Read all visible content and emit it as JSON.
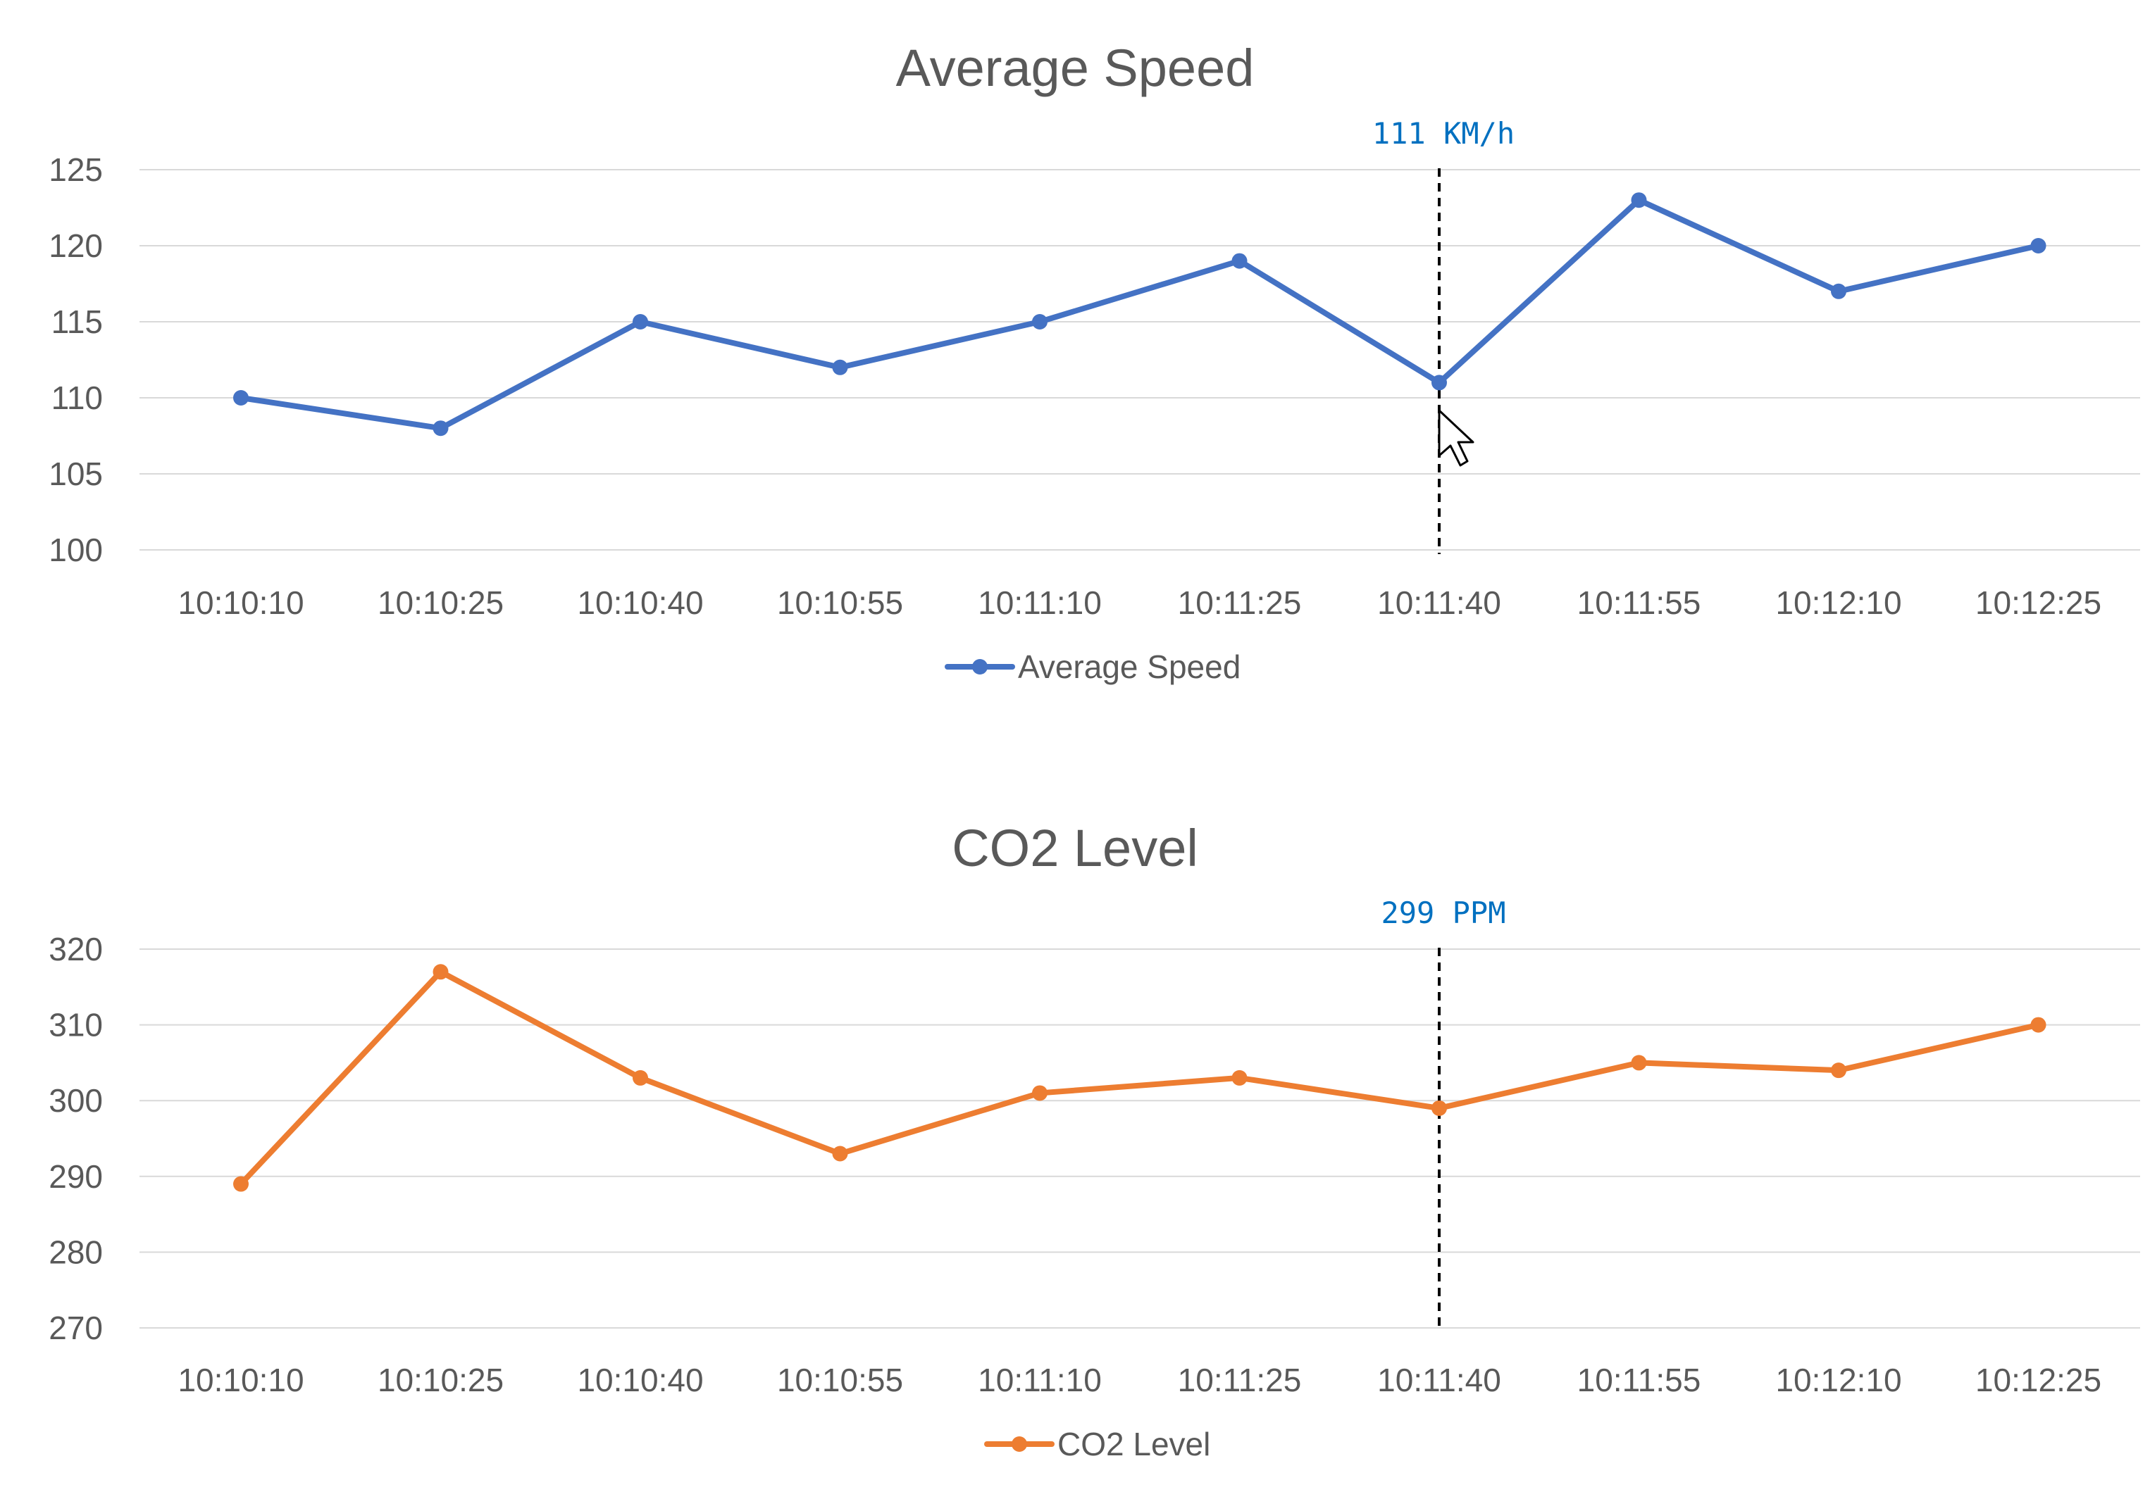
{
  "chart_data": [
    {
      "type": "line",
      "title": "Average Speed",
      "categories": [
        "10:10:10",
        "10:10:25",
        "10:10:40",
        "10:10:55",
        "10:11:10",
        "10:11:25",
        "10:11:40",
        "10:11:55",
        "10:12:10",
        "10:12:25"
      ],
      "series": [
        {
          "name": "Average Speed",
          "color": "#4472c4",
          "values": [
            110,
            108,
            115,
            112,
            115,
            119,
            111,
            123,
            117,
            120
          ]
        }
      ],
      "yticks": [
        100,
        105,
        110,
        115,
        120,
        125
      ],
      "ylim": [
        100,
        125
      ],
      "grid": true,
      "legend": "bottom",
      "cursor": {
        "category": "10:11:40",
        "label": "111 KM/h",
        "label_color": "#0070c0"
      }
    },
    {
      "type": "line",
      "title": "CO2 Level",
      "categories": [
        "10:10:10",
        "10:10:25",
        "10:10:40",
        "10:10:55",
        "10:11:10",
        "10:11:25",
        "10:11:40",
        "10:11:55",
        "10:12:10",
        "10:12:25"
      ],
      "series": [
        {
          "name": "CO2 Level",
          "color": "#ed7d31",
          "values": [
            289,
            317,
            303,
            293,
            301,
            303,
            299,
            305,
            304,
            310
          ]
        }
      ],
      "yticks": [
        270,
        280,
        290,
        300,
        310,
        320
      ],
      "ylim": [
        270,
        320
      ],
      "grid": true,
      "legend": "bottom",
      "cursor": {
        "category": "10:11:40",
        "label": "299 PPM",
        "label_color": "#0070c0"
      }
    }
  ],
  "pointer": {
    "icon": "mouse-pointer-icon"
  }
}
